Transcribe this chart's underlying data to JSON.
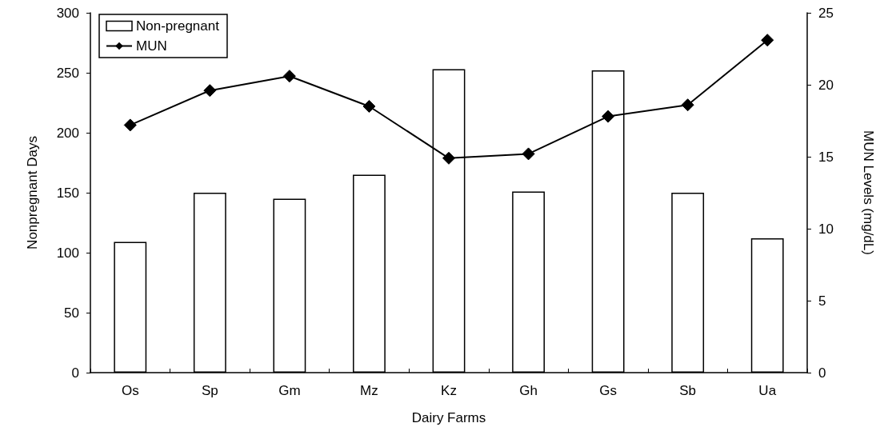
{
  "chart_data": {
    "type": "bar",
    "xlabel": "Dairy Farms",
    "ylabel": "Nonpregnant Days",
    "y2label": "MUN Levels (mg/dL)",
    "categories": [
      "Os",
      "Sp",
      "Gm",
      "Mz",
      "Kz",
      "Gh",
      "Gs",
      "Sb",
      "Ua"
    ],
    "series": [
      {
        "name": "Non-pregnant",
        "color": "#ffffff",
        "values": [
          109,
          150,
          145,
          165,
          253,
          151,
          252,
          150,
          112
        ]
      },
      {
        "name": "MUN",
        "type": "line",
        "axis": "y2",
        "color": "#000000",
        "marker": "diamond",
        "values": [
          17.2,
          19.6,
          20.6,
          18.5,
          14.9,
          15.2,
          17.8,
          18.6,
          23.1
        ]
      }
    ],
    "ylim": [
      0,
      300
    ],
    "yticks": [
      0,
      50,
      100,
      150,
      200,
      250,
      300
    ],
    "y2lim": [
      0,
      25
    ],
    "y2ticks": [
      0,
      5,
      10,
      15,
      20,
      25
    ],
    "grid": false,
    "legend": "top left"
  }
}
